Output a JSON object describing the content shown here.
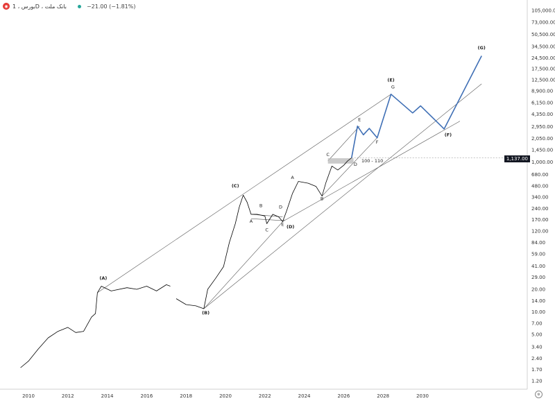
{
  "header": {
    "symbol": "بورس ، 1D ، بانک ملت",
    "change": "−21.00 (−1.81%)",
    "logo_icon": "bank-logo-icon",
    "status_color": "#26a69a"
  },
  "price_tag": "1,137.00",
  "settings_icon": "settings-icon",
  "chart_data": {
    "type": "line",
    "title": "",
    "xlabel": "",
    "ylabel": "",
    "y_scale": "log",
    "grid": false,
    "x_ticks": [
      "2010",
      "2012",
      "2014",
      "2016",
      "2018",
      "2020",
      "2022",
      "2024",
      "2026",
      "2028",
      "2030"
    ],
    "y_ticks": [
      "105,000.00",
      "73,000.00",
      "50,500.00",
      "34,500.00",
      "24,500.00",
      "17,500.00",
      "12,500.00",
      "8,900.00",
      "6,150.00",
      "4,350.00",
      "2,950.00",
      "2,050.00",
      "1,450.00",
      "1,000.00",
      "680.00",
      "480.00",
      "340.00",
      "240.00",
      "170.00",
      "120.00",
      "84.00",
      "59.00",
      "41.00",
      "29.00",
      "20.00",
      "14.00",
      "10.00",
      "7.00",
      "5.00",
      "3.40",
      "2.40",
      "1.70",
      "1.20"
    ],
    "current_price": 1137,
    "zone_label": "100 - 110",
    "series": [
      {
        "color": "#000000",
        "values": [
          [
            "2009.6",
            1.8
          ],
          [
            "2010.0",
            2.2
          ],
          [
            "2010.5",
            3.2
          ],
          [
            "2011.0",
            4.5
          ],
          [
            "2011.5",
            5.5
          ],
          [
            "2012.0",
            6.2
          ],
          [
            "2012.4",
            5.3
          ],
          [
            "2012.8",
            5.5
          ],
          [
            "2013.2",
            8.5
          ],
          [
            "2013.4",
            9.5
          ],
          [
            "2013.5",
            18
          ],
          [
            "2013.7",
            22
          ],
          [
            "2014.2",
            19
          ],
          [
            "2015.0",
            21
          ],
          [
            "2015.5",
            20
          ],
          [
            "2016.0",
            22
          ],
          [
            "2016.5",
            19
          ],
          [
            "2017.0",
            23
          ],
          [
            "2017.2",
            22
          ]
        ]
      },
      {
        "color": "#000000",
        "values": [
          [
            "2017.5",
            15
          ],
          [
            "2018.0",
            12.5
          ],
          [
            "2018.5",
            12
          ],
          [
            "2018.9",
            11
          ],
          [
            "2019.1",
            20
          ],
          [
            "2019.5",
            28
          ],
          [
            "2019.9",
            40
          ],
          [
            "2020.2",
            85
          ],
          [
            "2020.5",
            150
          ],
          [
            "2020.7",
            250
          ],
          [
            "2020.9",
            360
          ],
          [
            "2021.1",
            290
          ],
          [
            "2021.3",
            200
          ],
          [
            "2021.6",
            200
          ],
          [
            "2022.0",
            190
          ],
          [
            "2022.1",
            150
          ],
          [
            "2022.4",
            200
          ],
          [
            "2022.7",
            185
          ],
          [
            "2022.9",
            160
          ],
          [
            "2023.1",
            220
          ],
          [
            "2023.4",
            380
          ],
          [
            "2023.7",
            550
          ],
          [
            "2024.2",
            520
          ],
          [
            "2024.6",
            470
          ],
          [
            "2024.9",
            350
          ],
          [
            "2025.1",
            530
          ],
          [
            "2025.4",
            880
          ],
          [
            "2025.7",
            780
          ],
          [
            "2026.0",
            900
          ],
          [
            "2026.2",
            1030
          ],
          [
            "2026.4",
            1137
          ]
        ]
      },
      {
        "color": "#3f6fb5",
        "values": [
          [
            "2026.4",
            1137
          ],
          [
            "2026.7",
            3000
          ],
          [
            "2027.0",
            2300
          ],
          [
            "2027.3",
            2800
          ],
          [
            "2027.7",
            2100
          ],
          [
            "2028.4",
            8000
          ],
          [
            "2029.5",
            4500
          ],
          [
            "2029.9",
            5600
          ],
          [
            "2031.1",
            2750
          ],
          [
            "2033.0",
            26000
          ]
        ]
      }
    ],
    "wave_labels": [
      {
        "text": "(A)",
        "x": "2013.8",
        "y": 27
      },
      {
        "text": "(B)",
        "x": "2019.0",
        "y": 9.3
      },
      {
        "text": "(C)",
        "x": "2020.5",
        "y": 460
      },
      {
        "text": "(D)",
        "x": "2023.3",
        "y": 130
      },
      {
        "text": "(E)",
        "x": "2028.4",
        "y": 11800
      },
      {
        "text": "(F)",
        "x": "2031.3",
        "y": 2200
      },
      {
        "text": "(G)",
        "x": "2033.0",
        "y": 32000
      },
      {
        "text": "A",
        "x": "2021.3",
        "y": 155
      },
      {
        "text": "B",
        "x": "2021.8",
        "y": 250
      },
      {
        "text": "C",
        "x": "2022.1",
        "y": 118
      },
      {
        "text": "D",
        "x": "2022.8",
        "y": 240
      },
      {
        "text": "E",
        "x": "2022.9",
        "y": 140
      },
      {
        "text": "A",
        "x": "2023.4",
        "y": 590
      },
      {
        "text": "B",
        "x": "2024.9",
        "y": 310
      },
      {
        "text": "C",
        "x": "2025.2",
        "y": 1200
      },
      {
        "text": "D",
        "x": "2026.6",
        "y": 890
      },
      {
        "text": "E",
        "x": "2026.8",
        "y": 3500
      },
      {
        "text": "F",
        "x": "2027.7",
        "y": 1750
      },
      {
        "text": "G",
        "x": "2028.5",
        "y": 9500
      }
    ]
  }
}
